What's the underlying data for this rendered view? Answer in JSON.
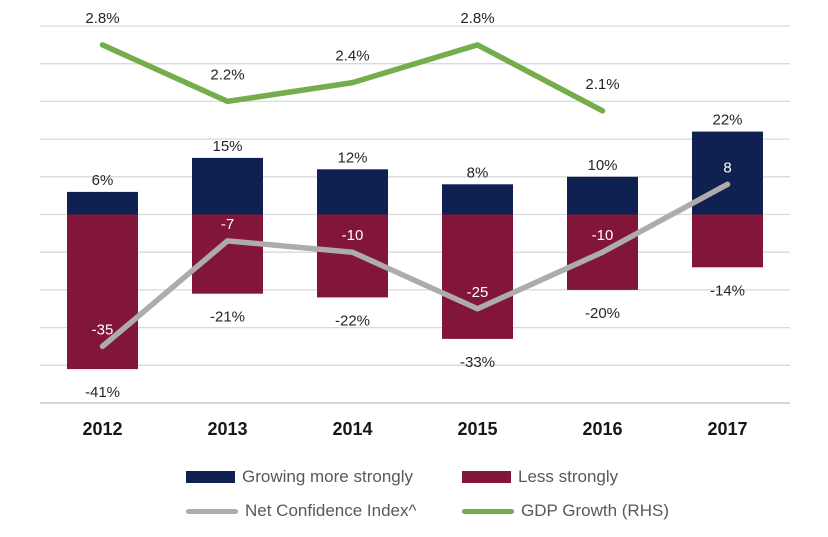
{
  "chart_data": {
    "type": "combo",
    "title": "",
    "categories": [
      "2012",
      "2013",
      "2014",
      "2015",
      "2016",
      "2017"
    ],
    "series": [
      {
        "name": "Growing more strongly",
        "type": "bar",
        "axis": "left",
        "color": "#0e2150",
        "values": [
          6,
          15,
          12,
          8,
          10,
          22
        ],
        "labels": [
          "6%",
          "15%",
          "12%",
          "8%",
          "10%",
          "22%"
        ],
        "label_color": "#262626",
        "label_position": "outside-end"
      },
      {
        "name": "Less strongly",
        "type": "bar",
        "axis": "left",
        "color": "#811638",
        "values": [
          -41,
          -21,
          -22,
          -33,
          -20,
          -14
        ],
        "labels": [
          "-41%",
          "-21%",
          "-22%",
          "-33%",
          "-20%",
          "-14%"
        ],
        "label_color": "#262626",
        "label_position": "outside-end"
      },
      {
        "name": "Net Confidence Index^",
        "type": "line",
        "axis": "left",
        "color": "#aeabab",
        "values": [
          -35,
          -7,
          -10,
          -25,
          -10,
          8
        ],
        "labels": [
          "-35",
          "-7",
          "-10",
          "-25",
          "-10",
          "8"
        ],
        "label_color": "#ffffff",
        "label_position": "above"
      },
      {
        "name": "GDP Growth (RHS)",
        "type": "line",
        "axis": "right",
        "color": "#74ad4b",
        "values": [
          2.8,
          2.2,
          2.4,
          2.8,
          2.1
        ],
        "labels": [
          "2.8%",
          "2.2%",
          "2.4%",
          "2.8%",
          "2.1%"
        ],
        "label_color": "#262626",
        "label_position": "above"
      }
    ],
    "left_axis": {
      "min": -50,
      "max": 50,
      "major_unit": 10,
      "tick_labels_visible": false
    },
    "right_axis": {
      "min": -1,
      "max": 3,
      "tick_labels_visible": false
    },
    "grid": {
      "visible": true,
      "color": "#d9d9d9",
      "axis_line_color": "#c0c0c0"
    },
    "x_axis": {
      "label_color": "#171717"
    },
    "legend": {
      "position": "bottom",
      "text_color": "#595959"
    }
  }
}
